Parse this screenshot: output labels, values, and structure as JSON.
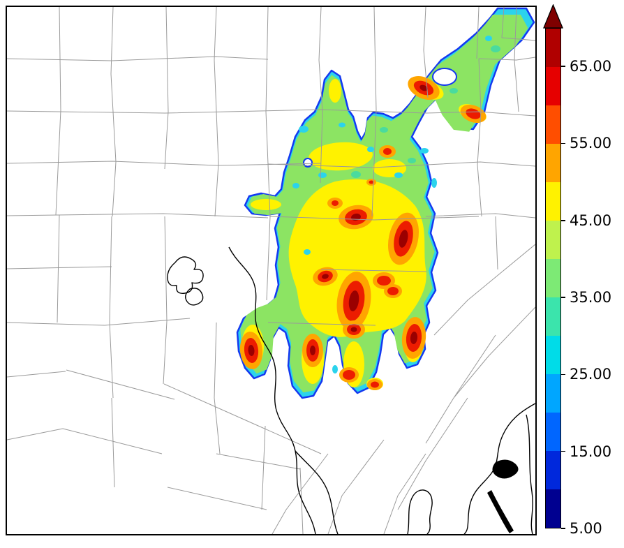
{
  "figure": {
    "kind": "filled-contour-field-over-county-map",
    "visible_text": [
      "65.00",
      "55.00",
      "45.00",
      "35.00",
      "25.00",
      "15.00",
      "5.00"
    ]
  },
  "colors": {
    "edge_blue": "#1438F0",
    "band_cyan": "#2BD3EC",
    "field_green": "#8CE463",
    "field_green_dark": "#4ADB9E",
    "field_yellow": "#FFF200",
    "hot_orange": "#FFA500",
    "hot_red": "#EC1C00",
    "hot_core": "#9A0000",
    "county_line": "#9A9A9A",
    "water_line": "#000000",
    "frame": "#000000",
    "background": "#FFFFFF"
  },
  "chart_data": {
    "type": "heatmap",
    "subtype": "filled-contour-map",
    "title": "",
    "xlabel": "",
    "ylabel": "",
    "value_range": [
      5,
      65
    ],
    "contour_interval": 5,
    "map_features": [
      "county-boundaries",
      "coastline",
      "lakes",
      "rivers"
    ],
    "field_description": "Irregular filled-contour region (values ~5 to >65) covering center and upper-right of map; cyan/blue edge band, green-yellow interior, many red high-value cores (>55) with dark-red maxima; white background elsewhere with gray county boundaries and black coastline at lower right",
    "colorbar": {
      "orientation": "vertical",
      "position": "right",
      "extend": "max",
      "display_min": 5,
      "display_max": 70,
      "tick_values": [
        65,
        55,
        45,
        35,
        25,
        15,
        5
      ],
      "tick_labels": [
        "65.00",
        "55.00",
        "45.00",
        "35.00",
        "25.00",
        "15.00",
        "5.00"
      ],
      "band_colors": [
        "#000090",
        "#0028DC",
        "#0066FF",
        "#00A6FF",
        "#00DCE8",
        "#3BE4AC",
        "#7DEA75",
        "#BFF24D",
        "#FFF200",
        "#FFA500",
        "#FF4E00",
        "#E60000",
        "#B00000"
      ],
      "arrow_color": "#7F0000"
    }
  }
}
